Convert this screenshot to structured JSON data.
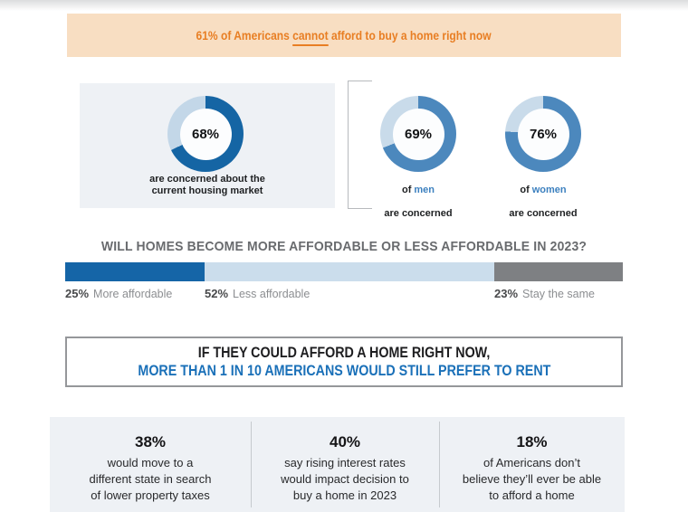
{
  "banner": {
    "text_before": "61% of Americans",
    "underlined": "cannot",
    "text_after": "afford to buy a home right now",
    "bg": "#F8DEC2",
    "color": "#E87E23"
  },
  "concern": {
    "main": {
      "value": 68,
      "pct_label": "68%",
      "caption": "are concerned about the\ncurrent housing market",
      "color": "#1565A4",
      "track": "#C3D7E8"
    },
    "men": {
      "value": 69,
      "pct_label": "69%",
      "of": "of",
      "word": "men",
      "line2": "are concerned",
      "color": "#4C88BD",
      "track": "#C9DBEA"
    },
    "women": {
      "value": 76,
      "pct_label": "76%",
      "of": "of",
      "word": "women",
      "line2": "are concerned",
      "color": "#4C88BD",
      "track": "#C9DBEA"
    }
  },
  "affordability": {
    "heading": "WILL HOMES BECOME MORE AFFORDABLE OR LESS AFFORDABLE IN 2023?",
    "segments": [
      {
        "pct_label": "25%",
        "name": "More affordable",
        "value": 25,
        "color": "#1565A7"
      },
      {
        "pct_label": "52%",
        "name": "Less affordable",
        "value": 52,
        "color": "#CBDDEC"
      },
      {
        "pct_label": "23%",
        "name": "Stay the same",
        "value": 23,
        "color": "#7E8083"
      }
    ]
  },
  "quote_box": {
    "line1": "IF THEY COULD AFFORD A HOME RIGHT NOW,",
    "line2": "MORE THAN 1 IN 10 AMERICANS WOULD STILL PREFER TO RENT"
  },
  "stats": [
    {
      "pct": "38%",
      "text": "would move to a\ndifferent state in search\nof lower property taxes"
    },
    {
      "pct": "40%",
      "text": "say rising interest rates\nwould impact decision to\nbuy a home in 2023"
    },
    {
      "pct": "18%",
      "text": "of Americans don’t\nbelieve they’ll ever be able\nto afford a home"
    }
  ],
  "colors": {
    "accent_orange": "#E87E23",
    "banner_bg": "#F8DEC2",
    "dark_blue": "#1565A7",
    "medium_blue": "#4C88BD",
    "light_blue": "#CBDDEC",
    "segment_gray": "#7E8083",
    "panel_bg": "#EEF1F5",
    "heading_gray": "#696B6E",
    "quote_blue": "#1A70B8"
  },
  "chart_data": [
    {
      "type": "pie",
      "subtype": "donut",
      "title": "are concerned about the current housing market",
      "labels": [
        "concerned",
        "not concerned"
      ],
      "values": [
        68,
        32
      ],
      "colors": [
        "#1565A4",
        "#C3D7E8"
      ],
      "center_label": "68%"
    },
    {
      "type": "pie",
      "subtype": "donut",
      "title": "of men are concerned",
      "labels": [
        "concerned",
        "not concerned"
      ],
      "values": [
        69,
        31
      ],
      "colors": [
        "#4C88BD",
        "#C9DBEA"
      ],
      "center_label": "69%"
    },
    {
      "type": "pie",
      "subtype": "donut",
      "title": "of women are concerned",
      "labels": [
        "concerned",
        "not concerned"
      ],
      "values": [
        76,
        24
      ],
      "colors": [
        "#4C88BD",
        "#C9DBEA"
      ],
      "center_label": "76%"
    },
    {
      "type": "bar",
      "subtype": "stacked-horizontal",
      "title": "WILL HOMES BECOME MORE AFFORDABLE OR LESS AFFORDABLE IN 2023?",
      "categories": [
        "More affordable",
        "Less affordable",
        "Stay the same"
      ],
      "values": [
        25,
        52,
        23
      ],
      "unit": "%",
      "colors": [
        "#1565A7",
        "#CBDDEC",
        "#7E8083"
      ],
      "legend_position": "below-left-aligned-to-segments",
      "grid": false
    }
  ]
}
